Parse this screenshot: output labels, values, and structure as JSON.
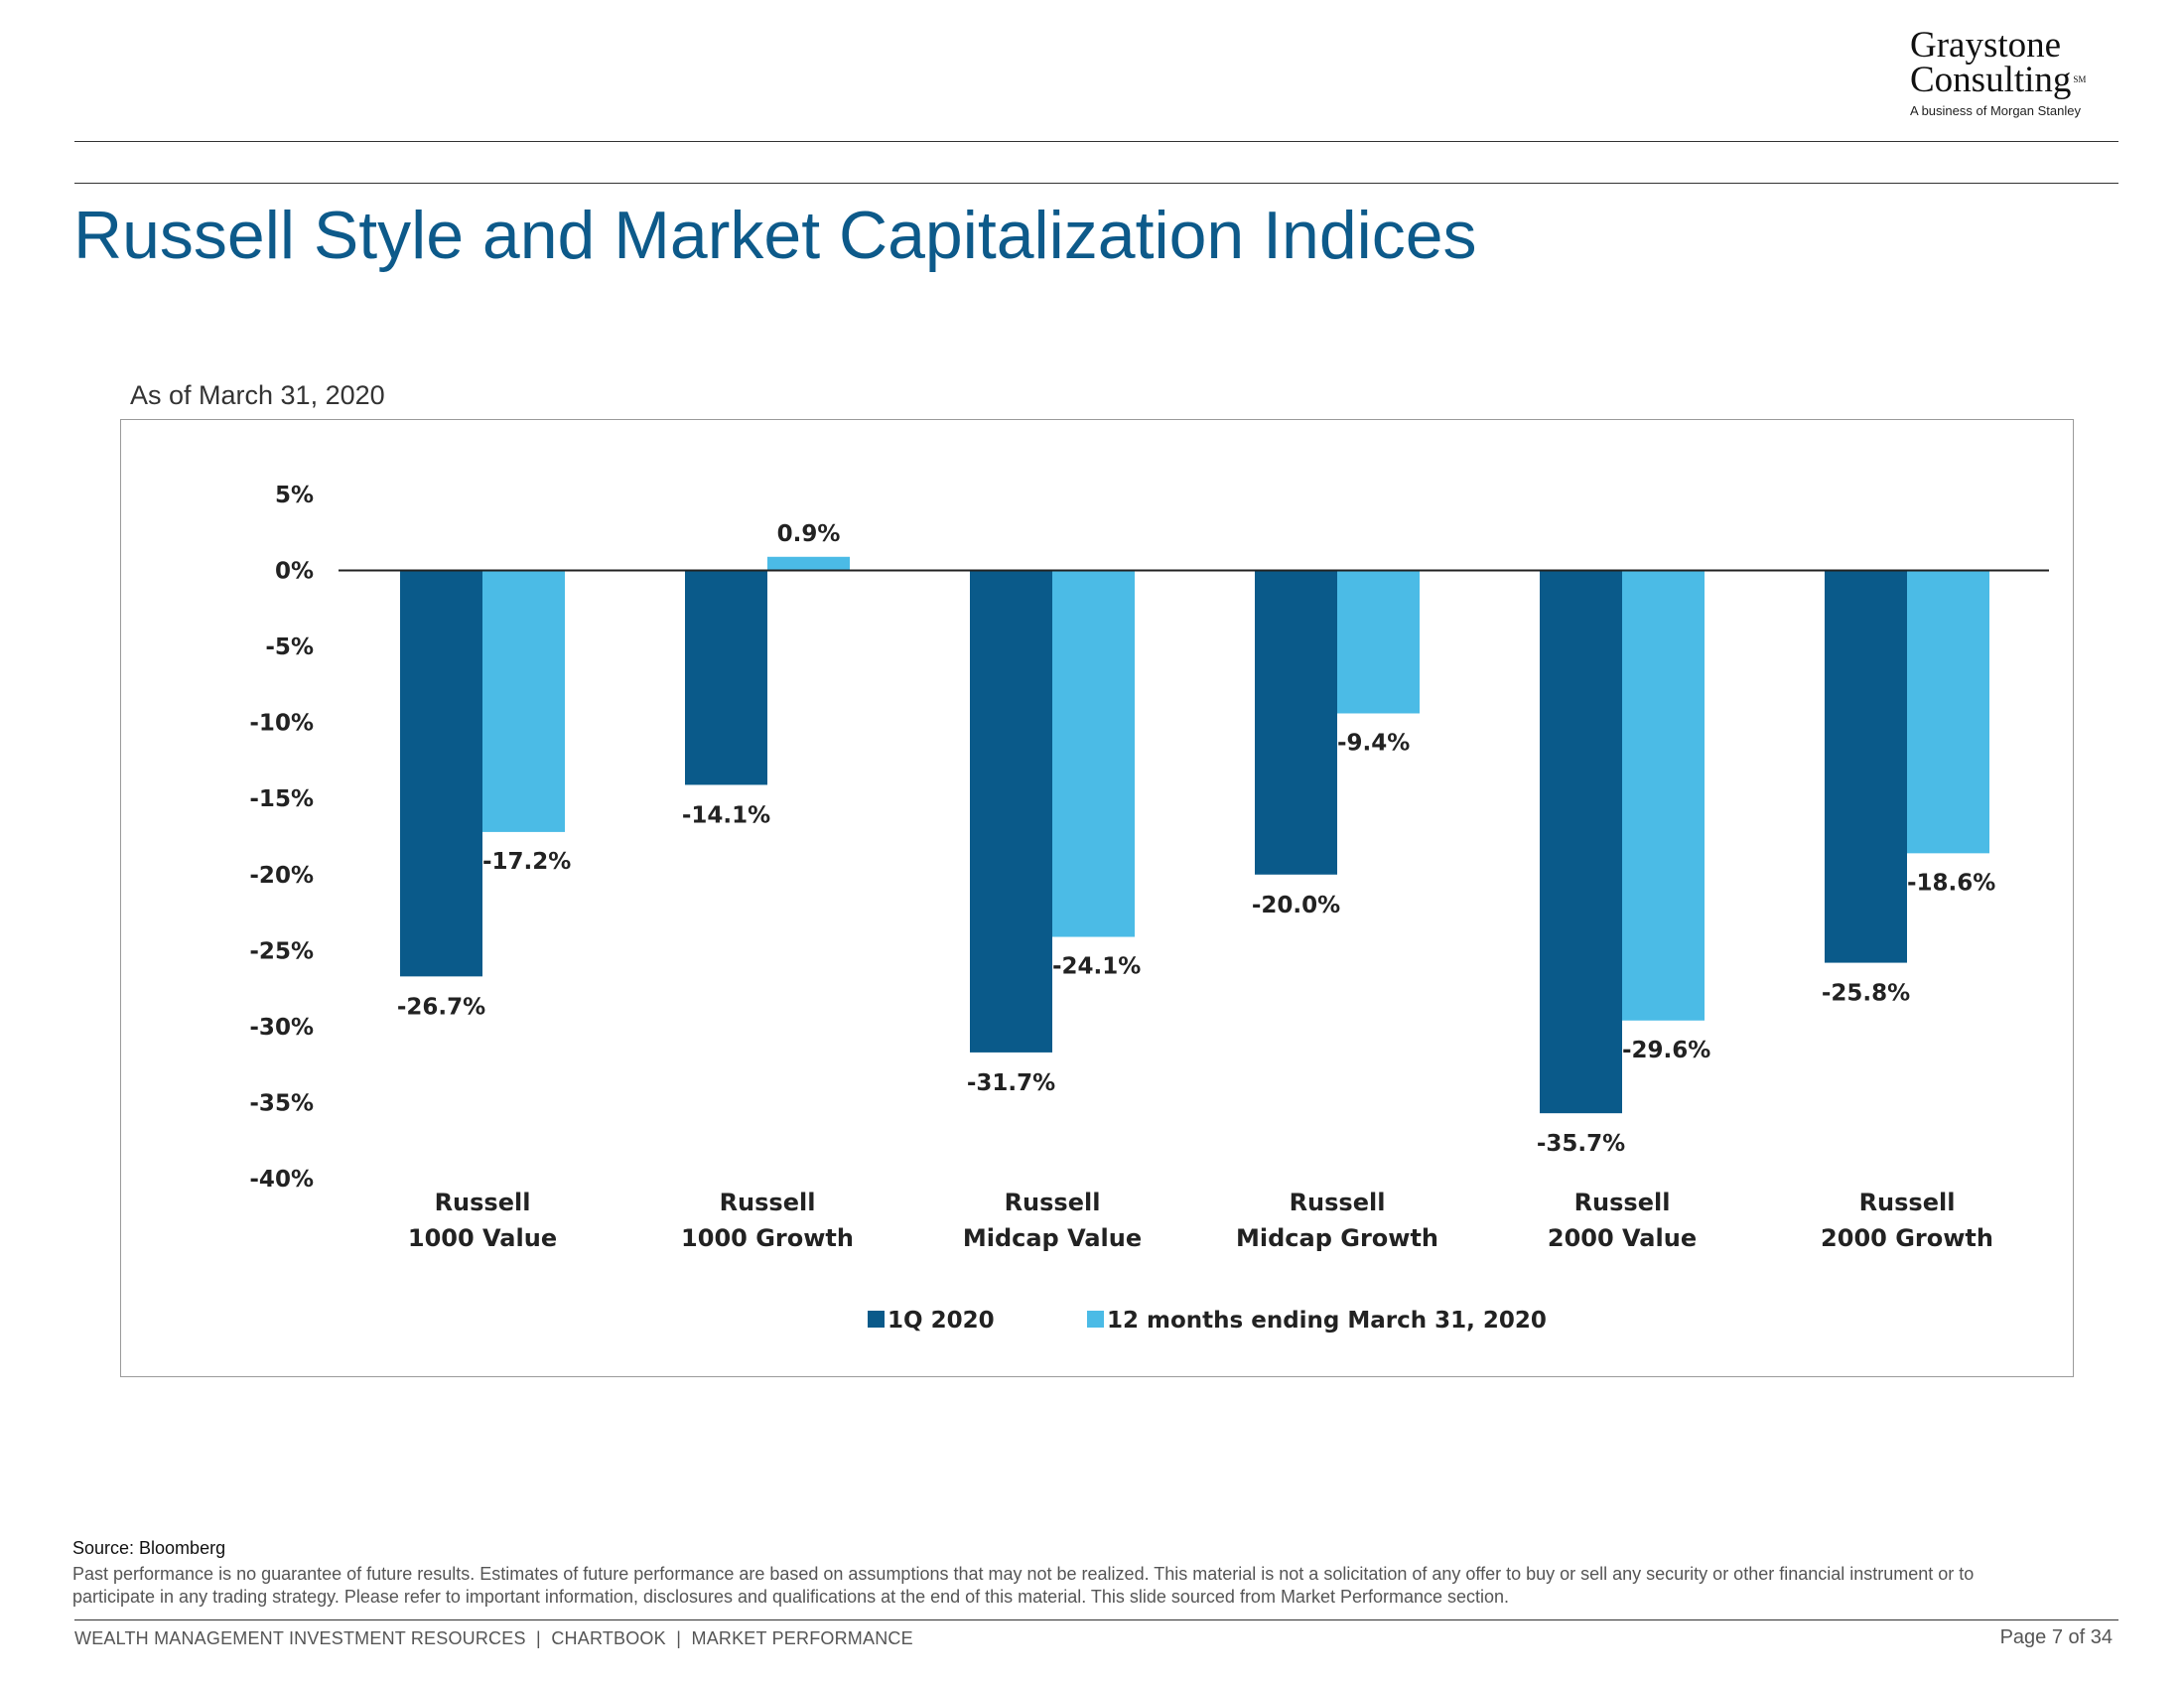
{
  "logo": {
    "line1": "Graystone",
    "line2": "Consulting",
    "mark": "SM",
    "line3": "A business of Morgan Stanley"
  },
  "title": "Russell Style and Market Capitalization Indices",
  "as_of": "As of March 31, 2020",
  "colors": {
    "title": "#0d5a8a",
    "series_1q": "#0a5a8a",
    "series_12m": "#4bbbe6"
  },
  "chart_data": {
    "type": "bar",
    "categories": [
      [
        "Russell",
        "1000 Value"
      ],
      [
        "Russell",
        "1000 Growth"
      ],
      [
        "Russell",
        "Midcap Value"
      ],
      [
        "Russell",
        "Midcap Growth"
      ],
      [
        "Russell",
        "2000 Value"
      ],
      [
        "Russell",
        "2000 Growth"
      ]
    ],
    "series": [
      {
        "name": "1Q 2020",
        "color": "#0a5a8a",
        "values": [
          -26.7,
          -14.1,
          -31.7,
          -20.0,
          -35.7,
          -25.8
        ],
        "labels": [
          "-26.7%",
          "-14.1%",
          "-31.7%",
          "-20.0%",
          "-35.7%",
          "-25.8%"
        ]
      },
      {
        "name": "12 months ending March 31, 2020",
        "color": "#4bbbe6",
        "values": [
          -17.2,
          0.9,
          -24.1,
          -9.4,
          -29.6,
          -18.6
        ],
        "labels": [
          "-17.2%",
          "0.9%",
          "-24.1%",
          "-9.4%",
          "-29.6%",
          "-18.6%"
        ]
      }
    ],
    "yticks": [
      "5%",
      "0%",
      "-5%",
      "-10%",
      "-15%",
      "-20%",
      "-25%",
      "-30%",
      "-35%",
      "-40%"
    ],
    "ytick_values": [
      5,
      0,
      -5,
      -10,
      -15,
      -20,
      -25,
      -30,
      -35,
      -40
    ],
    "ylim": [
      -40,
      5
    ],
    "grid": false,
    "legend_position": "bottom"
  },
  "footer": {
    "source": "Source: Bloomberg",
    "disclaimer": "Past performance is no guarantee of future results. Estimates of future performance are based on assumptions that may not be realized. This material is not a solicitation of any offer to buy or sell any security or other financial instrument or to participate in any trading strategy. Please refer to important information, disclosures and qualifications at the end of this material. This slide sourced from Market Performance section.",
    "bottom_line": "WEALTH MANAGEMENT INVESTMENT RESOURCES  |  CHARTBOOK  |  MARKET PERFORMANCE",
    "page": "Page 7 of 34"
  }
}
